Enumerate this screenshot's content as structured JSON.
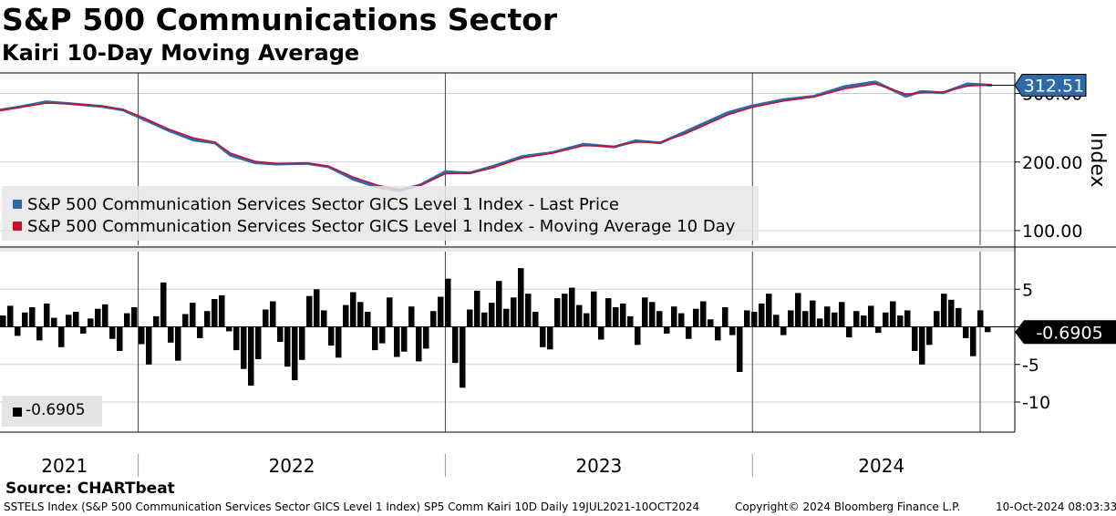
{
  "title": "S&P 500 Communications Sector",
  "subtitle": "Kairi 10-Day Moving Average",
  "source": "Source: CHARTbeat",
  "footer": {
    "left": "SSTELS Index (S&P 500 Communication Services Sector GICS Level 1 Index) SP5 Comm Kairi 10D  Daily 19JUL2021-10OCT2024",
    "copyright": "Copyright© 2024 Bloomberg Finance L.P.",
    "timestamp": "10-Oct-2024 08:03:33"
  },
  "colors": {
    "price": "#2e6aa8",
    "ma": "#c8102e",
    "kairi": "#000000",
    "grid": "#d0d0d0",
    "panel_divider": "#888888",
    "last_price_tag": "#2e6aa8"
  },
  "chart_data": [
    {
      "type": "line",
      "title": "S&P 500 Communications Sector",
      "ylabel": "Index",
      "ylim": [
        80,
        330
      ],
      "yticks": [
        100,
        200,
        300
      ],
      "ytick_labels": [
        "100.00",
        "200.00",
        "300.00"
      ],
      "last_value_label": "312.51",
      "legend": [
        "S&P 500 Communication Services Sector GICS Level 1 Index - Last Price",
        "S&P 500 Communication Services Sector GICS Level 1 Index - Moving Average 10 Day"
      ],
      "x": [
        2021.55,
        2021.62,
        2021.7,
        2021.78,
        2021.88,
        2021.95,
        2022.02,
        2022.1,
        2022.18,
        2022.25,
        2022.3,
        2022.38,
        2022.45,
        2022.55,
        2022.62,
        2022.7,
        2022.78,
        2022.85,
        2022.92,
        2023.0,
        2023.08,
        2023.15,
        2023.25,
        2023.35,
        2023.45,
        2023.55,
        2023.62,
        2023.7,
        2023.78,
        2023.85,
        2023.92,
        2024.0,
        2024.1,
        2024.2,
        2024.3,
        2024.4,
        2024.5,
        2024.55,
        2024.62,
        2024.7,
        2024.78
      ],
      "series": [
        {
          "name": "Last Price",
          "values": [
            276,
            281,
            288,
            285,
            281,
            276,
            262,
            246,
            232,
            228,
            210,
            199,
            197,
            198,
            193,
            175,
            163,
            158,
            167,
            186,
            184,
            193,
            208,
            214,
            226,
            222,
            231,
            228,
            244,
            258,
            272,
            282,
            291,
            296,
            310,
            317,
            296,
            303,
            301,
            314,
            312
          ]
        },
        {
          "name": "Moving Average 10 Day",
          "values": [
            275,
            280,
            286,
            285,
            282,
            277,
            264,
            248,
            235,
            229,
            213,
            201,
            198,
            198,
            194,
            178,
            166,
            160,
            166,
            183,
            184,
            191,
            206,
            213,
            224,
            223,
            229,
            229,
            241,
            255,
            269,
            280,
            289,
            295,
            307,
            314,
            299,
            301,
            302,
            311,
            313
          ]
        }
      ]
    },
    {
      "type": "bar",
      "title": "Kairi 10-Day Moving Average",
      "ylim": [
        -14,
        10
      ],
      "yticks": [
        5,
        0,
        -5,
        -10
      ],
      "ytick_labels": [
        "5",
        "",
        "-5",
        "-10"
      ],
      "last_value_label": "-0.6905",
      "legend": [
        "-0.6905"
      ],
      "xlim": [
        2021.55,
        2024.78
      ],
      "x_labels": [
        {
          "label": "2021",
          "at": 2021.76
        },
        {
          "label": "2022",
          "at": 2022.5
        },
        {
          "label": "2023",
          "at": 2023.5
        },
        {
          "label": "2024",
          "at": 2024.42
        }
      ],
      "year_boundaries": [
        2022.0,
        2023.0,
        2024.0
      ],
      "values": [
        1.5,
        2.8,
        -1.2,
        1.9,
        2.6,
        -1.8,
        3.1,
        1.2,
        -2.7,
        1.6,
        2.0,
        -0.9,
        1.1,
        2.4,
        3.0,
        -1.6,
        -3.2,
        1.8,
        2.6,
        -2.3,
        -5.0,
        1.4,
        5.9,
        -2.1,
        -4.5,
        1.7,
        3.2,
        -1.5,
        2.1,
        3.7,
        4.2,
        -0.6,
        -3.1,
        -5.6,
        -7.8,
        -4.3,
        2.3,
        3.4,
        -2.0,
        -5.3,
        -7.1,
        -4.4,
        4.1,
        5.0,
        2.2,
        -2.5,
        -4.1,
        2.9,
        4.6,
        3.3,
        2.0,
        -3.1,
        -2.2,
        3.9,
        -4.0,
        -3.3,
        2.7,
        -4.6,
        -2.9,
        2.1,
        4.0,
        6.4,
        -4.8,
        -8.1,
        2.3,
        4.8,
        1.9,
        3.2,
        6.1,
        2.4,
        3.9,
        7.8,
        4.4,
        2.0,
        -2.7,
        -3.0,
        3.8,
        4.4,
        5.2,
        2.9,
        1.8,
        4.7,
        -1.7,
        3.8,
        2.6,
        3.1,
        1.4,
        -2.4,
        3.9,
        3.3,
        2.1,
        -0.9,
        2.7,
        1.8,
        -1.6,
        2.4,
        3.4,
        1.0,
        -1.8,
        2.6,
        -1.1,
        -6.0,
        2.2,
        2.0,
        3.1,
        4.4,
        1.6,
        -1.1,
        2.2,
        4.5,
        2.1,
        3.5,
        1.1,
        2.7,
        1.9,
        3.3,
        -1.4,
        2.1,
        1.5,
        2.8,
        -0.8,
        1.9,
        3.4,
        1.5,
        2.2,
        -3.2,
        -5.0,
        -2.4,
        2.1,
        4.4,
        3.6,
        2.5,
        -1.5,
        -3.9,
        2.2,
        -0.7
      ]
    }
  ]
}
